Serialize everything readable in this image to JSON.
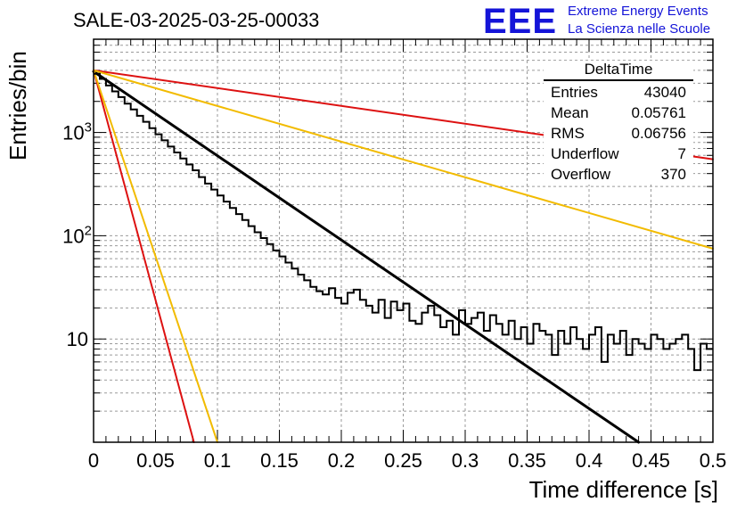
{
  "header": {
    "title": "SALE-03-2025-03-25-00033",
    "logo_text": "EEE",
    "logo_line1": "Extreme Energy Events",
    "logo_line2": "La Scienza nelle Scuole"
  },
  "stats_box": {
    "name": "DeltaTime",
    "rows": [
      {
        "label": "Entries",
        "value": "43040"
      },
      {
        "label": "Mean",
        "value": "0.05761"
      },
      {
        "label": "RMS",
        "value": "0.06756"
      },
      {
        "label": "Underflow",
        "value": "7"
      },
      {
        "label": "Overflow",
        "value": "370"
      }
    ]
  },
  "colors": {
    "histogram": "#000000",
    "fit_black": "#000000",
    "fit_red": "#dd1111",
    "fit_yellow": "#f2bb00",
    "grid": "#9a9a9a",
    "logo": "#1414d8"
  },
  "chart_data": {
    "type": "line",
    "xlabel": "Time difference [s]",
    "ylabel": "Entries/bin",
    "xlim": [
      0,
      0.5
    ],
    "ylim": [
      1.0,
      8000
    ],
    "log_y": true,
    "grid": true,
    "x_ticks": [
      "0",
      "0.05",
      "0.1",
      "0.15",
      "0.2",
      "0.25",
      "0.3",
      "0.35",
      "0.4",
      "0.45",
      "0.5"
    ],
    "y_tick_labels": [
      {
        "value": 10,
        "label": "10"
      },
      {
        "value": 100,
        "label": "10^2"
      },
      {
        "value": 1000,
        "label": "10^3"
      }
    ],
    "histogram": {
      "bin_width": 0.005,
      "x_start": 0,
      "values": [
        3700,
        3300,
        2850,
        2500,
        2200,
        1900,
        1670,
        1450,
        1270,
        1100,
        960,
        840,
        730,
        640,
        560,
        490,
        430,
        370,
        320,
        280,
        245,
        214,
        186,
        162,
        142,
        124,
        108,
        95,
        83,
        72,
        63,
        55,
        48,
        42,
        37,
        32,
        29,
        27,
        31,
        25,
        22,
        28,
        30,
        24,
        21,
        18,
        24,
        16,
        23,
        19,
        22,
        15,
        14,
        18,
        21,
        17,
        13,
        15,
        11,
        19,
        14,
        16,
        18,
        12,
        17,
        14,
        11,
        15,
        10,
        13,
        9,
        14,
        12,
        11,
        7,
        12,
        9,
        13,
        10,
        8,
        11,
        13,
        6,
        11,
        9,
        12,
        7,
        10,
        9,
        8,
        11,
        10,
        8,
        9,
        10,
        11,
        8,
        5,
        9,
        8
      ]
    },
    "series": [
      {
        "color": "black",
        "type": "exponential",
        "x": [
          0,
          0.44
        ],
        "y": [
          3900,
          1.0
        ]
      },
      {
        "color": "red",
        "type": "exponential",
        "x": [
          0,
          0.5
        ],
        "y": [
          4000,
          550
        ]
      },
      {
        "color": "yellow",
        "type": "exponential",
        "x": [
          0,
          0.5
        ],
        "y": [
          4000,
          75
        ]
      },
      {
        "color": "red",
        "type": "exponential",
        "x": [
          0,
          0.081
        ],
        "y": [
          4000,
          1.0
        ]
      },
      {
        "color": "yellow",
        "type": "exponential",
        "x": [
          0,
          0.1
        ],
        "y": [
          4000,
          1.0
        ]
      }
    ]
  }
}
